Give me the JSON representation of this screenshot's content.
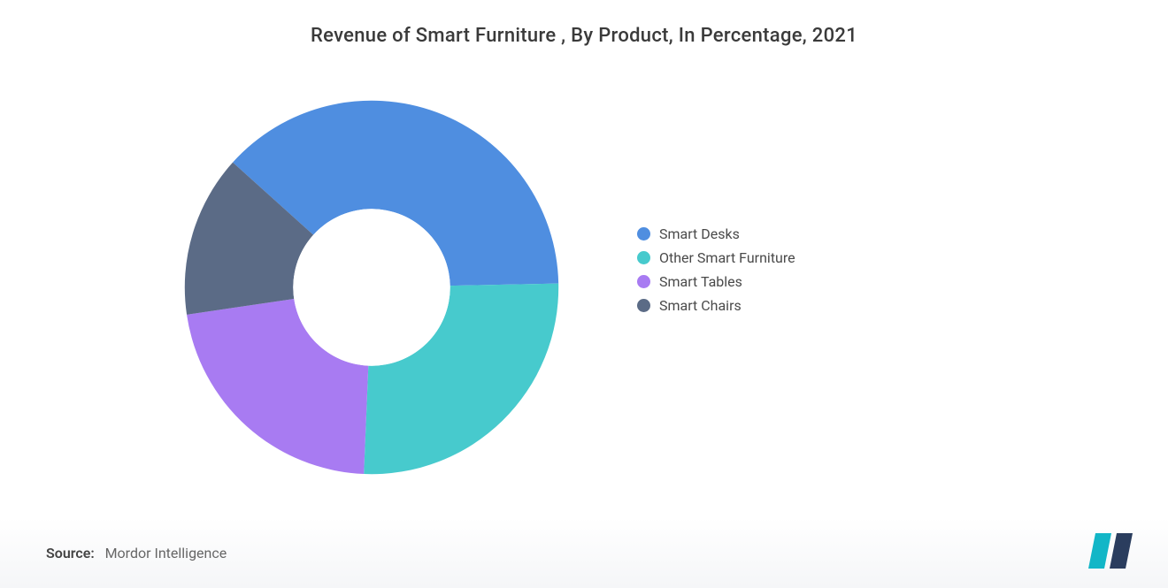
{
  "title": "Revenue of Smart Furniture , By Product, In Percentage, 2021",
  "chart": {
    "type": "donut",
    "inner_radius_ratio": 0.42,
    "background_color": "#ffffff",
    "start_angle_deg": -48,
    "segments": [
      {
        "label": "Smart Desks",
        "value": 38,
        "color": "#4f8ee0"
      },
      {
        "label": "Other Smart Furniture",
        "value": 26,
        "color": "#47cacd"
      },
      {
        "label": "Smart Tables",
        "value": 22,
        "color": "#a87bf2"
      },
      {
        "label": "Smart Chairs",
        "value": 14,
        "color": "#5b6b86"
      }
    ]
  },
  "legend": {
    "items": [
      {
        "label": "Smart Desks",
        "color": "#4f8ee0"
      },
      {
        "label": "Other Smart Furniture",
        "color": "#47cacd"
      },
      {
        "label": "Smart Tables",
        "color": "#a87bf2"
      },
      {
        "label": "Smart Chairs",
        "color": "#5b6b86"
      }
    ],
    "label_fontsize": 16,
    "label_color": "#4a4a4a"
  },
  "source": {
    "label": "Source:",
    "text": "Mordor Intelligence"
  },
  "logo": {
    "bar1_color": "#12b6c7",
    "bar2_color": "#2a3d5e"
  }
}
